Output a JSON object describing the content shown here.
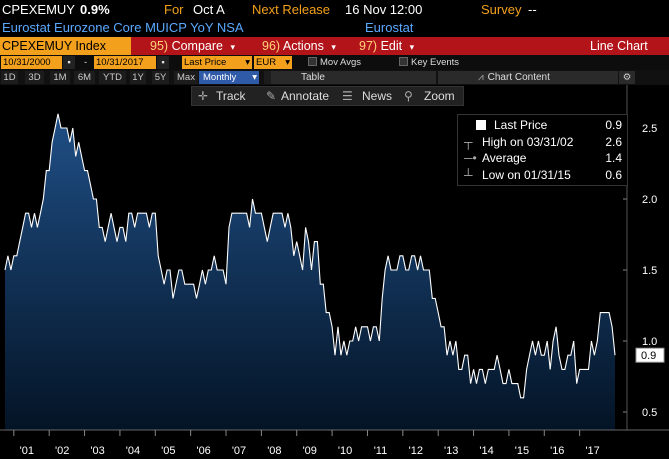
{
  "header": {
    "ticker": "CPEXEMUY",
    "value": "0.9%",
    "for_label": "For",
    "for_value": "Oct A",
    "next_release_label": "Next Release",
    "next_release_value": "16 Nov 12:00",
    "survey_label": "Survey",
    "survey_value": "--",
    "description": "Eurostat Eurozone Core MUICP YoY NSA",
    "source": "Eurostat"
  },
  "command_bar": {
    "security": "CPEXEMUY Index",
    "compare_num": "95)",
    "compare_label": "Compare",
    "actions_num": "96)",
    "actions_label": "Actions",
    "edit_num": "97)",
    "edit_label": "Edit",
    "chart_type": "Line Chart"
  },
  "controls": {
    "start_date": "10/31/2000",
    "dash": "-",
    "end_date": "10/31/2017",
    "field": "Last Price",
    "currency": "EUR",
    "mov_avgs": "Mov Avgs",
    "key_events": "Key Events"
  },
  "ranges": [
    "1D",
    "3D",
    "1M",
    "6M",
    "YTD",
    "1Y",
    "5Y",
    "Max"
  ],
  "frequency": "Monthly",
  "table_label": "Table",
  "chart_content_label": "Chart Content",
  "toolbar": {
    "track": "Track",
    "annotate": "Annotate",
    "news": "News",
    "zoom": "Zoom"
  },
  "legend": {
    "last_price_label": "Last Price",
    "last_price_value": "0.9",
    "high_label": "High on 03/31/02",
    "high_value": "2.6",
    "average_label": "Average",
    "average_value": "1.4",
    "low_label": "Low on 01/31/15",
    "low_value": "0.6"
  },
  "colors": {
    "series_line": "#ffffff",
    "area_top": "#1f4f86",
    "area_bottom": "#041426",
    "header_orange": "#f3a11d",
    "header_blue": "#5aa9ff",
    "command_red": "#b3141a",
    "active_blue": "#2f5aa8"
  },
  "chart_data": {
    "type": "area",
    "ylim": [
      0.3,
      2.8
    ],
    "y_ticks": [
      "0.5",
      "1.0",
      "1.5",
      "2.0",
      "2.5"
    ],
    "x_ticks": [
      "'01",
      "'02",
      "'03",
      "'04",
      "'05",
      "'06",
      "'07",
      "'08",
      "'09",
      "'10",
      "'11",
      "'12",
      "'13",
      "'14",
      "'15",
      "'16",
      "'17"
    ],
    "last_value_tag": "0.9",
    "x_start": "2000-10",
    "x_end": "2017-10",
    "values": [
      1.5,
      1.6,
      1.5,
      1.6,
      1.6,
      1.7,
      1.8,
      1.9,
      1.9,
      1.8,
      1.9,
      1.8,
      1.9,
      2.0,
      2.2,
      2.2,
      2.4,
      2.5,
      2.6,
      2.5,
      2.5,
      2.5,
      2.4,
      2.5,
      2.3,
      2.4,
      2.3,
      2.2,
      2.2,
      2.1,
      2.0,
      2.0,
      1.8,
      1.8,
      1.7,
      1.8,
      1.9,
      1.8,
      1.7,
      1.8,
      1.8,
      1.7,
      1.9,
      1.9,
      1.8,
      1.9,
      1.9,
      1.9,
      1.9,
      1.8,
      1.9,
      1.9,
      1.6,
      1.5,
      1.4,
      1.5,
      1.5,
      1.3,
      1.4,
      1.5,
      1.5,
      1.4,
      1.4,
      1.4,
      1.4,
      1.3,
      1.4,
      1.5,
      1.4,
      1.5,
      1.5,
      1.6,
      1.5,
      1.5,
      1.5,
      1.4,
      1.8,
      1.9,
      1.9,
      1.9,
      1.9,
      1.9,
      1.9,
      1.8,
      2.0,
      1.9,
      1.9,
      1.9,
      1.8,
      1.7,
      1.8,
      1.9,
      1.9,
      1.9,
      1.9,
      1.8,
      1.9,
      1.8,
      1.6,
      1.7,
      1.6,
      1.5,
      1.8,
      1.7,
      1.5,
      1.7,
      1.7,
      1.4,
      1.4,
      1.2,
      1.2,
      1.1,
      0.9,
      1.1,
      0.9,
      1.0,
      0.9,
      1.0,
      1.0,
      1.1,
      1.0,
      1.1,
      1.1,
      1.1,
      1.0,
      1.1,
      1.1,
      1.0,
      1.3,
      1.5,
      1.6,
      1.5,
      1.5,
      1.5,
      1.6,
      1.6,
      1.5,
      1.5,
      1.6,
      1.6,
      1.5,
      1.6,
      1.5,
      1.5,
      1.5,
      1.3,
      1.3,
      1.2,
      1.1,
      1.1,
      0.9,
      1.0,
      0.9,
      1.0,
      0.8,
      0.8,
      0.9,
      0.9,
      0.7,
      0.8,
      0.7,
      0.8,
      0.8,
      0.7,
      0.8,
      0.8,
      0.8,
      0.9,
      0.8,
      0.7,
      0.7,
      0.8,
      0.7,
      0.7,
      0.7,
      0.6,
      0.6,
      0.8,
      0.9,
      1.0,
      0.9,
      1.0,
      0.9,
      0.9,
      1.0,
      0.8,
      1.0,
      1.1,
      0.9,
      0.8,
      0.8,
      0.9,
      0.9,
      1.0,
      0.7,
      0.8,
      0.8,
      0.8,
      0.8,
      1.0,
      0.9,
      1.0,
      1.2,
      1.2,
      1.2,
      1.2,
      1.1,
      0.9
    ]
  }
}
